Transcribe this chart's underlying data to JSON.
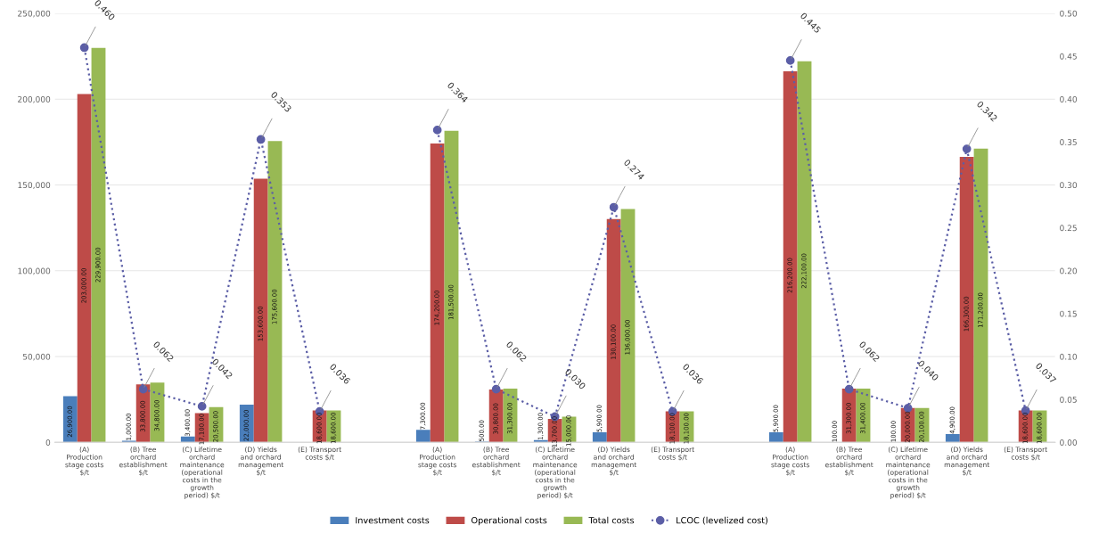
{
  "chart_data": {
    "type": "bar",
    "categories": [
      "(A) Production stage costs $/t",
      "(B) Tree orchard establishment $/t",
      "(C) Lifetime orchard maintenance (operational costs in the growth period) $/t",
      "(D) Yields and orchard management $/t",
      "(E) Transport costs $/t",
      null,
      "(A) Production stage costs $/t",
      "(B) Tree orchard establishment $/t",
      "(C) Lifetime orchard maintenance (operational costs in the growth period) $/t",
      "(D) Yields and orchard management $/t",
      "(E) Transport costs $/t",
      null,
      "(A) Production stage costs $/t",
      "(B) Tree orchard establishment $/t",
      "(C) Lifetime orchard maintenance (operational costs in the growth period) $/t",
      "(D) Yields and orchard management $/t",
      "(E) Transport costs $/t"
    ],
    "series": [
      {
        "name": "Investment costs",
        "color": "#4a7ebb",
        "values": [
          26900,
          1000,
          3400,
          22000,
          null,
          null,
          7300,
          500,
          1300,
          5900,
          null,
          null,
          5900,
          100,
          100,
          4900,
          null
        ],
        "value_labels": [
          "26,900.00",
          "1,000.00",
          "3,400.00",
          "22,000.00",
          null,
          null,
          "7,300.00",
          "500.00",
          "1,300.00",
          "5,900.00",
          null,
          null,
          "5,900.00",
          "100.00",
          "100.00",
          "4,900.00",
          null
        ]
      },
      {
        "name": "Operational costs",
        "color": "#be4b48",
        "values": [
          203000,
          33800,
          17100,
          153600,
          18600,
          null,
          174200,
          30800,
          13700,
          130100,
          18100,
          null,
          216200,
          31300,
          20000,
          166300,
          18600
        ],
        "value_labels": [
          "203,000.00",
          "33,800.00",
          "17,100.00",
          "153,600.00",
          "18,600.00",
          null,
          "174,200.00",
          "30,800.00",
          "13,700.00",
          "130,100.00",
          "18,100.00",
          null,
          "216,200.00",
          "31,300.00",
          "20,000.00",
          "166,300.00",
          "18,600.00"
        ]
      },
      {
        "name": "Total costs",
        "color": "#98b954",
        "values": [
          229900,
          34800,
          20500,
          175600,
          18600,
          null,
          181500,
          31300,
          15000,
          136000,
          18100,
          null,
          222100,
          31400,
          20100,
          171200,
          18600
        ],
        "value_labels": [
          "229,900.00",
          "34,800.00",
          "20,500.00",
          "175,600.00",
          "18,600.00",
          null,
          "181,500.00",
          "31,300.00",
          "15,000.00",
          "136,000.00",
          "18,100.00",
          null,
          "222,100.00",
          "31,400.00",
          "20,100.00",
          "171,200.00",
          "18,600.00"
        ]
      },
      {
        "name": "LCOC (levelized cost)",
        "color": "#5b5ea6",
        "type": "line",
        "axis": "y2",
        "marker": "circle",
        "line_style": "dotted",
        "values": [
          0.46,
          0.062,
          0.042,
          0.353,
          0.036,
          null,
          0.364,
          0.062,
          0.03,
          0.274,
          0.036,
          null,
          0.445,
          0.062,
          0.04,
          0.342,
          0.037
        ],
        "value_labels": [
          "0.460",
          "0.062",
          "0.042",
          "0.353",
          "0.036",
          null,
          "0.364",
          "0.062",
          "0.030",
          "0.274",
          "0.036",
          null,
          "0.445",
          "0.062",
          "0.040",
          "0.342",
          "0.037"
        ]
      }
    ],
    "ylim": [
      0,
      250000
    ],
    "yticks": [
      {
        "value": 0,
        "label": "0"
      },
      {
        "value": 50000,
        "label": "50,000"
      },
      {
        "value": 100000,
        "label": "100,000"
      },
      {
        "value": 150000,
        "label": "150,000"
      },
      {
        "value": 200000,
        "label": "200,000"
      },
      {
        "value": 250000,
        "label": "250,000"
      }
    ],
    "y2lim": [
      0,
      0.5
    ],
    "y2ticks": [
      {
        "value": 0,
        "label": "0.00"
      },
      {
        "value": 0.05,
        "label": "0.05"
      },
      {
        "value": 0.1,
        "label": "0.10"
      },
      {
        "value": 0.15,
        "label": "0.15"
      },
      {
        "value": 0.2,
        "label": "0.20"
      },
      {
        "value": 0.25,
        "label": "0.25"
      },
      {
        "value": 0.3,
        "label": "0.30"
      },
      {
        "value": 0.35,
        "label": "0.35"
      },
      {
        "value": 0.4,
        "label": "0.40"
      },
      {
        "value": 0.45,
        "label": "0.45"
      },
      {
        "value": 0.5,
        "label": "0.50"
      }
    ],
    "grid": "y",
    "legend": "bottom"
  }
}
